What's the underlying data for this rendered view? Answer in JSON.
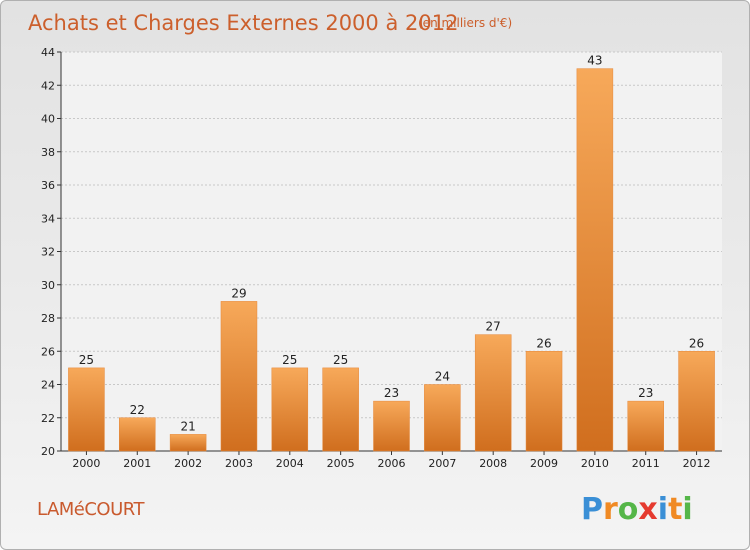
{
  "chart_data": {
    "type": "bar",
    "title": "Achats et Charges Externes 2000 à 2012",
    "subtitle": "(en milliers d'€)",
    "categories": [
      "2000",
      "2001",
      "2002",
      "2003",
      "2004",
      "2005",
      "2006",
      "2007",
      "2008",
      "2009",
      "2010",
      "2011",
      "2012"
    ],
    "values": [
      25,
      22,
      21,
      29,
      25,
      25,
      23,
      24,
      27,
      26,
      43,
      23,
      26
    ],
    "ylim": [
      20,
      44
    ],
    "yticks": [
      20,
      22,
      24,
      26,
      28,
      30,
      32,
      34,
      36,
      38,
      40,
      42,
      44
    ],
    "grid": true,
    "bar_color": "#ee8a36",
    "bar_color_light": "#f7a95a",
    "bar_color_dark": "#d06e1e"
  },
  "footer": {
    "commune": "LAMéCOURT",
    "logo_text": "Proxiti"
  },
  "colors": {
    "title": "#cc5f2c",
    "logo_p": "#3a8fd6",
    "logo_r": "#f08a24",
    "logo_o": "#55b648",
    "logo_x": "#e53a2f",
    "logo_i": "#3a8fd6",
    "logo_t": "#f08a24",
    "logo_i2": "#55b648"
  }
}
